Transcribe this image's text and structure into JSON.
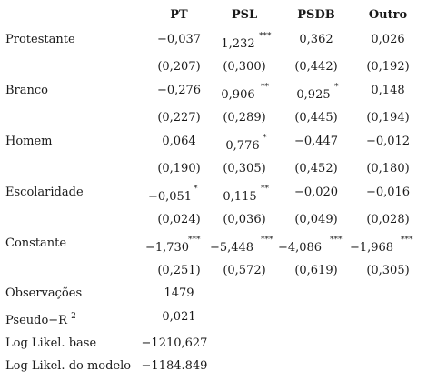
{
  "headers": [
    "PT",
    "PSL",
    "PSDB",
    "Outro"
  ],
  "rows": [
    {
      "label": "Protestante",
      "coef": [
        {
          "v": "−0,037",
          "s": ""
        },
        {
          "v": "1,232",
          "s": "***"
        },
        {
          "v": "0,362",
          "s": ""
        },
        {
          "v": "0,026",
          "s": ""
        }
      ],
      "se": [
        "(0,207)",
        "(0,300)",
        "(0,442)",
        "(0,192)"
      ]
    },
    {
      "label": "Branco",
      "coef": [
        {
          "v": "−0,276",
          "s": ""
        },
        {
          "v": "0,906",
          "s": "**"
        },
        {
          "v": "0,925",
          "s": "*"
        },
        {
          "v": "0,148",
          "s": ""
        }
      ],
      "se": [
        "(0,227)",
        "(0,289)",
        "(0,445)",
        "(0,194)"
      ]
    },
    {
      "label": "Homem",
      "coef": [
        {
          "v": "0,064",
          "s": ""
        },
        {
          "v": "0,776",
          "s": "*"
        },
        {
          "v": "−0,447",
          "s": ""
        },
        {
          "v": "−0,012",
          "s": ""
        }
      ],
      "se": [
        "(0,190)",
        "(0,305)",
        "(0,452)",
        "(0,180)"
      ]
    },
    {
      "label": "Escolaridade",
      "coef": [
        {
          "v": "−0,051",
          "s": "*"
        },
        {
          "v": "0,115",
          "s": "**"
        },
        {
          "v": "−0,020",
          "s": ""
        },
        {
          "v": "−0,016",
          "s": ""
        }
      ],
      "se": [
        "(0,024)",
        "(0,036)",
        "(0,049)",
        "(0,028)"
      ]
    },
    {
      "label": "Constante",
      "coef": [
        {
          "v": "−1,730",
          "s": "***"
        },
        {
          "v": "−5,448",
          "s": "***"
        },
        {
          "v": "−4,086",
          "s": "***"
        },
        {
          "v": "−1,968",
          "s": "***"
        }
      ],
      "se": [
        "(0,251)",
        "(0,572)",
        "(0,619)",
        "(0,305)"
      ]
    }
  ],
  "stats": [
    {
      "label": "Observações",
      "sup": "",
      "value": "1479"
    },
    {
      "label": "Pseudo−R",
      "sup": "2",
      "value": "0,021"
    },
    {
      "label": "Log Likel. base",
      "sup": "",
      "value": "−1210,627"
    },
    {
      "label": "Log Likel. do modelo",
      "sup": "",
      "value": "−1184.849"
    }
  ]
}
